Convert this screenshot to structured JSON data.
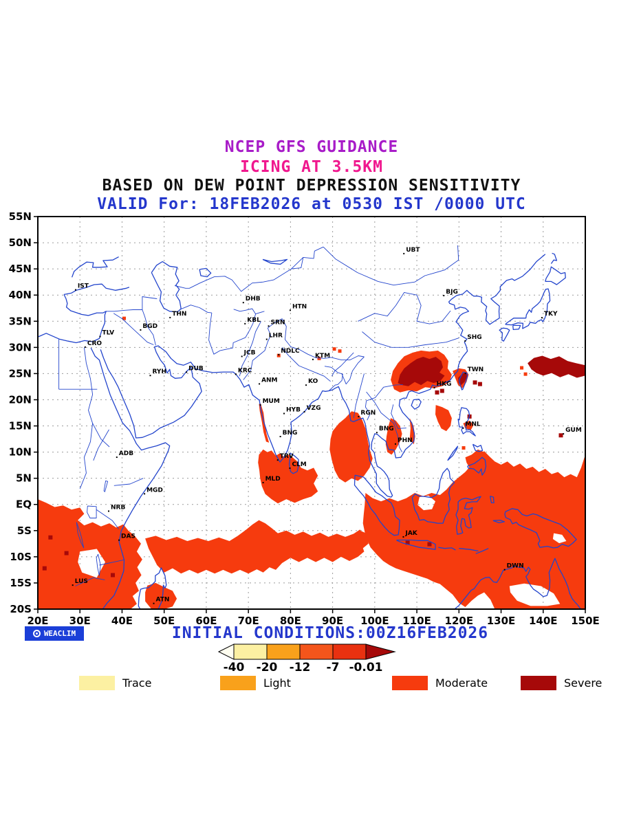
{
  "titles": {
    "line1": "NCEP GFS GUIDANCE",
    "line2": "ICING AT 3.5KM",
    "line3": "BASED ON DEW POINT DEPRESSION SENSITIVITY",
    "line4": "VALID For: 18FEB2026 at 0530 IST /0000 UTC"
  },
  "colors": {
    "title1": "#A81CC8",
    "title2": "#F0188E",
    "title3": "#111111",
    "title4": "#2437CC",
    "init_conditions": "#2437CC",
    "weaclim_bg": "#1B3FD8",
    "map_line": "#2244CC",
    "grid": "#9A9A9A",
    "trace": "#FCF0A2",
    "light": "#F9A11B",
    "moderate": "#F63B0E",
    "severe": "#A60909"
  },
  "branding": {
    "logo_text": "WEACLIM",
    "logo_icon": "circle-logo"
  },
  "footer": {
    "initial_conditions": "INITIAL CONDITIONS:00Z16FEB2026"
  },
  "colorbar": {
    "labels": [
      "-40",
      "-20",
      "-12",
      "-7",
      "-0.01"
    ],
    "colors": [
      "#FFFEF0",
      "#FCF0A2",
      "#F9A11B",
      "#F4551B",
      "#E93110",
      "#A60909"
    ]
  },
  "legend": [
    {
      "label": "Trace",
      "color": "#FCF0A2"
    },
    {
      "label": "Light",
      "color": "#F9A11B"
    },
    {
      "label": "Moderate",
      "color": "#F63B0E"
    },
    {
      "label": "Severe",
      "color": "#A60909"
    }
  ],
  "chart_data": {
    "type": "map",
    "title": "NCEP GFS GUIDANCE - ICING AT 3.5KM",
    "subtitle": "BASED ON DEW POINT DEPRESSION SENSITIVITY",
    "valid": "18FEB2026 at 0530 IST / 0000 UTC",
    "initial_conditions": "00Z16FEB2026",
    "extent": {
      "lon_min": 20,
      "lon_max": 150,
      "lat_min": -20,
      "lat_max": 55
    },
    "lat_tick_degrees": [
      55,
      50,
      45,
      40,
      35,
      30,
      25,
      20,
      15,
      10,
      5,
      0,
      -5,
      -10,
      -15,
      -20
    ],
    "lat_tick_labels": [
      "55N",
      "50N",
      "45N",
      "40N",
      "35N",
      "30N",
      "25N",
      "20N",
      "15N",
      "10N",
      "5N",
      "EQ",
      "5S",
      "10S",
      "15S",
      "20S"
    ],
    "lon_tick_degrees": [
      20,
      30,
      40,
      50,
      60,
      70,
      80,
      90,
      100,
      110,
      120,
      130,
      140,
      150
    ],
    "lon_tick_labels": [
      "20E",
      "30E",
      "40E",
      "50E",
      "60E",
      "70E",
      "80E",
      "90E",
      "100E",
      "110E",
      "120E",
      "130E",
      "140E",
      "150E"
    ],
    "grid": "dashed, 10 deg lon x 5 deg lat",
    "scale_breakpoints": [
      -40,
      -20,
      -12,
      -7,
      -0.01
    ],
    "categories": [
      {
        "name": "Trace",
        "range": "-40 to -20"
      },
      {
        "name": "Light",
        "range": "-20 to -12"
      },
      {
        "name": "Moderate",
        "range": "-12 to -7"
      },
      {
        "name": "Severe",
        "range": "-7 to -0.01"
      }
    ],
    "stations": [
      [
        "IST",
        28.97,
        41.0
      ],
      [
        "TLV",
        34.78,
        32.08
      ],
      [
        "CRO",
        31.25,
        30.06
      ],
      [
        "BGD",
        44.4,
        33.34
      ],
      [
        "THN",
        51.4,
        35.7
      ],
      [
        "DHB",
        68.8,
        38.56
      ],
      [
        "KBL",
        69.2,
        34.53
      ],
      [
        "SRN",
        74.8,
        34.08
      ],
      [
        "LHR",
        74.35,
        31.55
      ],
      [
        "JCB",
        68.45,
        28.28
      ],
      [
        "NDLC",
        77.2,
        28.61
      ],
      [
        "KTM",
        85.32,
        27.7
      ],
      [
        "HTN",
        79.93,
        37.1
      ],
      [
        "RYH",
        46.7,
        24.63
      ],
      [
        "DUB",
        55.3,
        25.27
      ],
      [
        "KRC",
        67.01,
        24.86
      ],
      [
        "ANM",
        72.6,
        23.03
      ],
      [
        "KO",
        83.7,
        22.8
      ],
      [
        "MUM",
        72.85,
        19.0
      ],
      [
        "HYB",
        78.47,
        17.37
      ],
      [
        "VZG",
        83.3,
        17.7
      ],
      [
        "BNG",
        77.59,
        12.97
      ],
      [
        "TRV",
        76.95,
        8.48
      ],
      [
        "CLM",
        79.85,
        6.93
      ],
      [
        "MLD",
        73.5,
        4.17
      ],
      [
        "ADB",
        38.75,
        9.02
      ],
      [
        "MGD",
        45.33,
        2.03
      ],
      [
        "NRB",
        36.82,
        -1.28
      ],
      [
        "DAS",
        39.28,
        -6.82
      ],
      [
        "LUS",
        28.28,
        -15.42
      ],
      [
        "ATN",
        47.52,
        -18.91
      ],
      [
        "UBT",
        106.92,
        47.92
      ],
      [
        "BJG",
        116.4,
        39.9
      ],
      [
        "SHG",
        121.47,
        31.23
      ],
      [
        "TKY",
        139.7,
        35.68
      ],
      [
        "TWN",
        121.52,
        25.03
      ],
      [
        "HKG",
        114.17,
        22.3
      ],
      [
        "RGN",
        96.17,
        16.78
      ],
      [
        "BNG",
        100.5,
        13.73
      ],
      [
        "PHN",
        104.92,
        11.55
      ],
      [
        "MNL",
        121.0,
        14.58
      ],
      [
        "GUM",
        144.8,
        13.48
      ],
      [
        "JAK",
        106.8,
        -6.2
      ],
      [
        "DWN",
        130.84,
        -12.46
      ]
    ],
    "icing_regions": [
      {
        "intensity": "moderate",
        "area": "Equatorial East Africa and southwest Indian Ocean (20E-45E, 1N-20S)"
      },
      {
        "intensity": "moderate",
        "area": "Equatorial Indian Ocean band (46E-97E, 4S-13S)"
      },
      {
        "intensity": "moderate",
        "area": "South India, Sri Lanka and Maldives region (72E-87E, 0N-10N)"
      },
      {
        "intensity": "moderate",
        "area": "West coast of India narrow strip (72E-75E, 10N-19N)"
      },
      {
        "intensity": "moderate",
        "area": "Andaman Sea and Myanmar coast (89E-100E, 4N-18N)"
      },
      {
        "intensity": "moderate",
        "area": "Indochina and South China Sea patches (102E-119E, 8N-19N)"
      },
      {
        "intensity": "moderate",
        "area": "Maritime Continent through New Guinea and north Australia seas (97E-150E, 10N-20S)"
      },
      {
        "intensity": "moderate",
        "area": "Northern Madagascar vicinity (45E-53E, 15S-20S)"
      },
      {
        "intensity": "severe",
        "area": "Southeast China (105E-117E, 22N-28N)"
      },
      {
        "intensity": "severe",
        "area": "Taiwan and vicinity (119E-122E, 22N-25N)"
      },
      {
        "intensity": "severe",
        "area": "Northwest Pacific (136E-150E, 24N-28N)"
      },
      {
        "intensity": "severe",
        "area": "Scattered spots south of Hong Kong, east of Taiwan, Java, central-southern Africa"
      }
    ]
  }
}
